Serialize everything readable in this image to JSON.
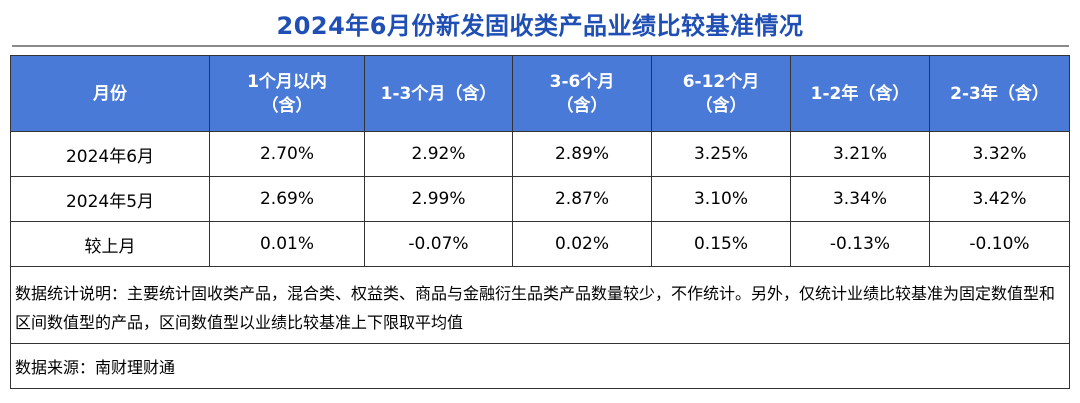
{
  "title": "2024年6月份新发固收类产品业绩比较基准情况",
  "colors": {
    "title": "#1f4fb4",
    "header_bg": "#4a7ad8",
    "header_text": "#ffffff",
    "border": "#333333"
  },
  "chart_data": {
    "type": "table",
    "title": "2024年6月份新发固收类产品业绩比较基准情况",
    "columns": [
      {
        "line1": "月份",
        "line2": ""
      },
      {
        "line1": "1个月以内",
        "line2": "（含）"
      },
      {
        "line1": "1-3个月（含）",
        "line2": ""
      },
      {
        "line1": "3-6个月",
        "line2": "（含）"
      },
      {
        "line1": "6-12个月",
        "line2": "（含）"
      },
      {
        "line1": "1-2年（含）",
        "line2": ""
      },
      {
        "line1": "2-3年（含）",
        "line2": ""
      }
    ],
    "rows": [
      {
        "label": "2024年6月",
        "values": [
          "2.70%",
          "2.92%",
          "2.89%",
          "3.25%",
          "3.21%",
          "3.32%"
        ]
      },
      {
        "label": "2024年5月",
        "values": [
          "2.69%",
          "2.99%",
          "2.87%",
          "3.10%",
          "3.34%",
          "3.42%"
        ]
      },
      {
        "label": "较上月",
        "values": [
          "0.01%",
          "-0.07%",
          "0.02%",
          "0.15%",
          "-0.13%",
          "-0.10%"
        ]
      }
    ],
    "note": "数据统计说明：主要统计固收类产品，混合类、权益类、商品与金融衍生品类产品数量较少，不作统计。另外，仅统计业绩比较基准为固定数值型和区间数值型的产品，区间数值型以业绩比较基准上下限取平均值",
    "source": "数据来源：南财理财通"
  }
}
